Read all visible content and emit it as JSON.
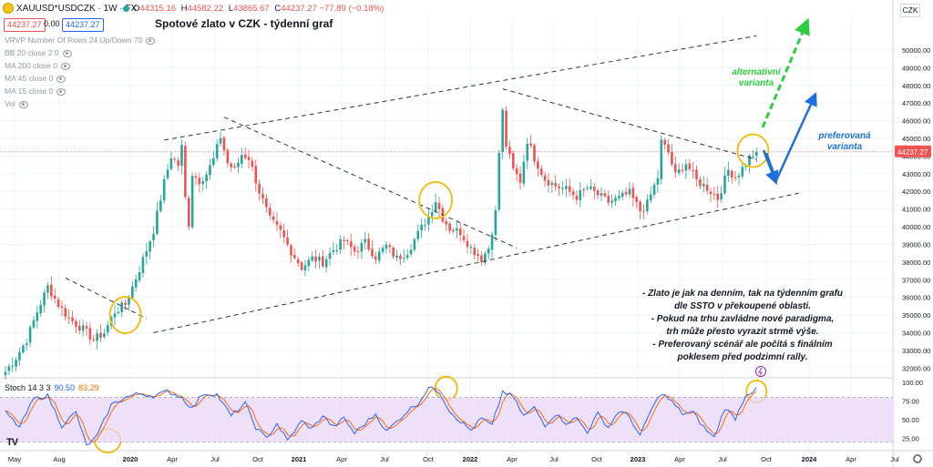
{
  "header": {
    "symbol": "XAUUSD*USDCZK · 1W · FX",
    "ohlc": [
      {
        "key": "O",
        "value": "44315.16"
      },
      {
        "key": "H",
        "value": "44582.22"
      },
      {
        "key": "L",
        "value": "43865.67"
      },
      {
        "key": "C",
        "value": "44237.27 −77.89 (−0.18%)"
      }
    ],
    "sell_price": "44237.27",
    "spread": "0.00",
    "buy_price": "44237.27",
    "title": "Spotové zlato v CZK - týdenní graf",
    "currency": "CZK"
  },
  "indicators": [
    "VRVP Number Of Rows 24 Up/Down 70",
    "BB 20 close 2 0",
    "MA 200 close 0",
    "MA 45 close 0",
    "MA 15 close 0",
    "Vol"
  ],
  "stoch": {
    "label": "Stoch 14 3 3",
    "k": "90.50",
    "d": "83.29"
  },
  "annotations": {
    "alternative": [
      "alternativní",
      "varianta"
    ],
    "preferred": [
      "preferovaná",
      "varianta"
    ],
    "note": [
      "- Zlato je jak na denním, tak na týdenním grafu",
      "dle SSTO v překoupené oblasti.",
      "- Pokud na trhu zavládne nové paradigma,",
      "trh může přesto vyrazit strmě výše.",
      "- Preferovaný scénář ale počítá s finálním",
      "poklesem před podzimní rally."
    ]
  },
  "logo": "TV",
  "colors": {
    "up": "#26a69a",
    "down": "#ef5350",
    "stoch_k": "#2962ff",
    "stoch_d": "#ff6d00",
    "band": "#e9d5f7",
    "circle": "#f0b90b",
    "alt_arrow": "#2ecc40",
    "pref_arrow": "#1e6fd9"
  },
  "chart_data": {
    "type": "candlestick",
    "y_unit": "CZK",
    "ylim": [
      31500,
      51800
    ],
    "y_ticks": [
      32000,
      33000,
      34000,
      35000,
      36000,
      37000,
      38000,
      39000,
      40000,
      41000,
      42000,
      43000,
      44000,
      45000,
      46000,
      47000,
      48000,
      49000,
      50000
    ],
    "y_tick_labels": [
      "32000.00",
      "33000.00",
      "34000.00",
      "35000.00",
      "36000.00",
      "37000.00",
      "38000.00",
      "39000.00",
      "40000.00",
      "41000.00",
      "42000.00",
      "43000.00",
      "44000.00",
      "45000.00",
      "46000.00",
      "47000.00",
      "48000.00",
      "49000.00",
      "50000.00"
    ],
    "x_labels": [
      "May",
      "Aug",
      "2020",
      "Apr",
      "Jul",
      "Oct",
      "2021",
      "Apr",
      "Jul",
      "Oct",
      "2022",
      "Apr",
      "Jul",
      "Oct",
      "2023",
      "Apr",
      "Jul",
      "Oct",
      "2024",
      "Apr",
      "Jul"
    ],
    "x_bold": [
      "2020",
      "2021",
      "2022",
      "2023",
      "2024"
    ],
    "last_price": 44237.27,
    "last_price_label": "44237.27",
    "price_anchors": [
      [
        0,
        31800
      ],
      [
        3,
        32600
      ],
      [
        6,
        33600
      ],
      [
        9,
        35200
      ],
      [
        12,
        36600
      ],
      [
        15,
        35600
      ],
      [
        18,
        34800
      ],
      [
        22,
        34200
      ],
      [
        25,
        33600
      ],
      [
        28,
        34000
      ],
      [
        31,
        35200
      ],
      [
        34,
        35600
      ],
      [
        38,
        37600
      ],
      [
        42,
        39800
      ],
      [
        45,
        42500
      ],
      [
        47,
        44000
      ],
      [
        49,
        43500
      ],
      [
        50,
        44500
      ],
      [
        51,
        41600
      ],
      [
        52,
        40200
      ],
      [
        53,
        43000
      ],
      [
        55,
        42600
      ],
      [
        57,
        43000
      ],
      [
        59,
        43800
      ],
      [
        61,
        45100
      ],
      [
        63,
        43600
      ],
      [
        65,
        43200
      ],
      [
        67,
        44100
      ],
      [
        69,
        43900
      ],
      [
        72,
        42000
      ],
      [
        75,
        40400
      ],
      [
        78,
        39700
      ],
      [
        81,
        38600
      ],
      [
        84,
        37700
      ],
      [
        87,
        38200
      ],
      [
        90,
        38000
      ],
      [
        93,
        38700
      ],
      [
        96,
        39200
      ],
      [
        99,
        38600
      ],
      [
        102,
        39100
      ],
      [
        105,
        38300
      ],
      [
        108,
        38900
      ],
      [
        111,
        38200
      ],
      [
        114,
        38600
      ],
      [
        117,
        39600
      ],
      [
        120,
        40600
      ],
      [
        122,
        41500
      ],
      [
        124,
        40500
      ],
      [
        126,
        39900
      ],
      [
        129,
        39700
      ],
      [
        132,
        38800
      ],
      [
        135,
        38200
      ],
      [
        137,
        38800
      ],
      [
        139,
        40800
      ],
      [
        140,
        44200
      ],
      [
        141,
        46500
      ],
      [
        142,
        44600
      ],
      [
        144,
        43200
      ],
      [
        146,
        42600
      ],
      [
        148,
        44900
      ],
      [
        150,
        43900
      ],
      [
        153,
        42700
      ],
      [
        156,
        42300
      ],
      [
        159,
        42100
      ],
      [
        162,
        41700
      ],
      [
        165,
        42200
      ],
      [
        168,
        41800
      ],
      [
        171,
        41400
      ],
      [
        174,
        41600
      ],
      [
        177,
        41900
      ],
      [
        180,
        40900
      ],
      [
        182,
        41300
      ],
      [
        185,
        42800
      ],
      [
        186,
        44800
      ],
      [
        188,
        44200
      ],
      [
        190,
        42900
      ],
      [
        193,
        43600
      ],
      [
        196,
        42600
      ],
      [
        199,
        42200
      ],
      [
        202,
        41600
      ],
      [
        205,
        43200
      ],
      [
        207,
        42800
      ],
      [
        209,
        43300
      ],
      [
        211,
        43900
      ],
      [
        213,
        44237
      ]
    ],
    "stoch_k_anchors": [
      [
        0,
        60
      ],
      [
        4,
        40
      ],
      [
        8,
        78
      ],
      [
        12,
        82
      ],
      [
        16,
        42
      ],
      [
        20,
        60
      ],
      [
        23,
        15
      ],
      [
        26,
        28
      ],
      [
        30,
        70
      ],
      [
        34,
        80
      ],
      [
        38,
        85
      ],
      [
        42,
        82
      ],
      [
        46,
        88
      ],
      [
        50,
        80
      ],
      [
        53,
        65
      ],
      [
        56,
        85
      ],
      [
        60,
        84
      ],
      [
        64,
        55
      ],
      [
        68,
        72
      ],
      [
        71,
        40
      ],
      [
        74,
        25
      ],
      [
        77,
        45
      ],
      [
        80,
        22
      ],
      [
        84,
        48
      ],
      [
        87,
        38
      ],
      [
        90,
        56
      ],
      [
        93,
        40
      ],
      [
        96,
        52
      ],
      [
        99,
        32
      ],
      [
        102,
        45
      ],
      [
        105,
        58
      ],
      [
        108,
        34
      ],
      [
        111,
        48
      ],
      [
        114,
        62
      ],
      [
        117,
        72
      ],
      [
        120,
        93
      ],
      [
        123,
        88
      ],
      [
        126,
        62
      ],
      [
        129,
        48
      ],
      [
        132,
        36
      ],
      [
        135,
        52
      ],
      [
        138,
        42
      ],
      [
        141,
        88
      ],
      [
        144,
        80
      ],
      [
        147,
        55
      ],
      [
        150,
        66
      ],
      [
        153,
        43
      ],
      [
        156,
        58
      ],
      [
        159,
        46
      ],
      [
        162,
        52
      ],
      [
        165,
        34
      ],
      [
        168,
        58
      ],
      [
        171,
        40
      ],
      [
        174,
        62
      ],
      [
        177,
        54
      ],
      [
        180,
        28
      ],
      [
        183,
        62
      ],
      [
        186,
        86
      ],
      [
        189,
        74
      ],
      [
        192,
        58
      ],
      [
        195,
        60
      ],
      [
        198,
        40
      ],
      [
        201,
        26
      ],
      [
        204,
        66
      ],
      [
        207,
        52
      ],
      [
        210,
        84
      ],
      [
        213,
        90.5
      ]
    ],
    "stoch_ylim": [
      10,
      105
    ],
    "stoch_ticks": [
      25,
      50,
      75,
      100
    ],
    "stoch_tick_labels": [
      "25.00",
      "50.00",
      "75.00",
      "100.00"
    ],
    "stoch_band": [
      20,
      80
    ]
  }
}
